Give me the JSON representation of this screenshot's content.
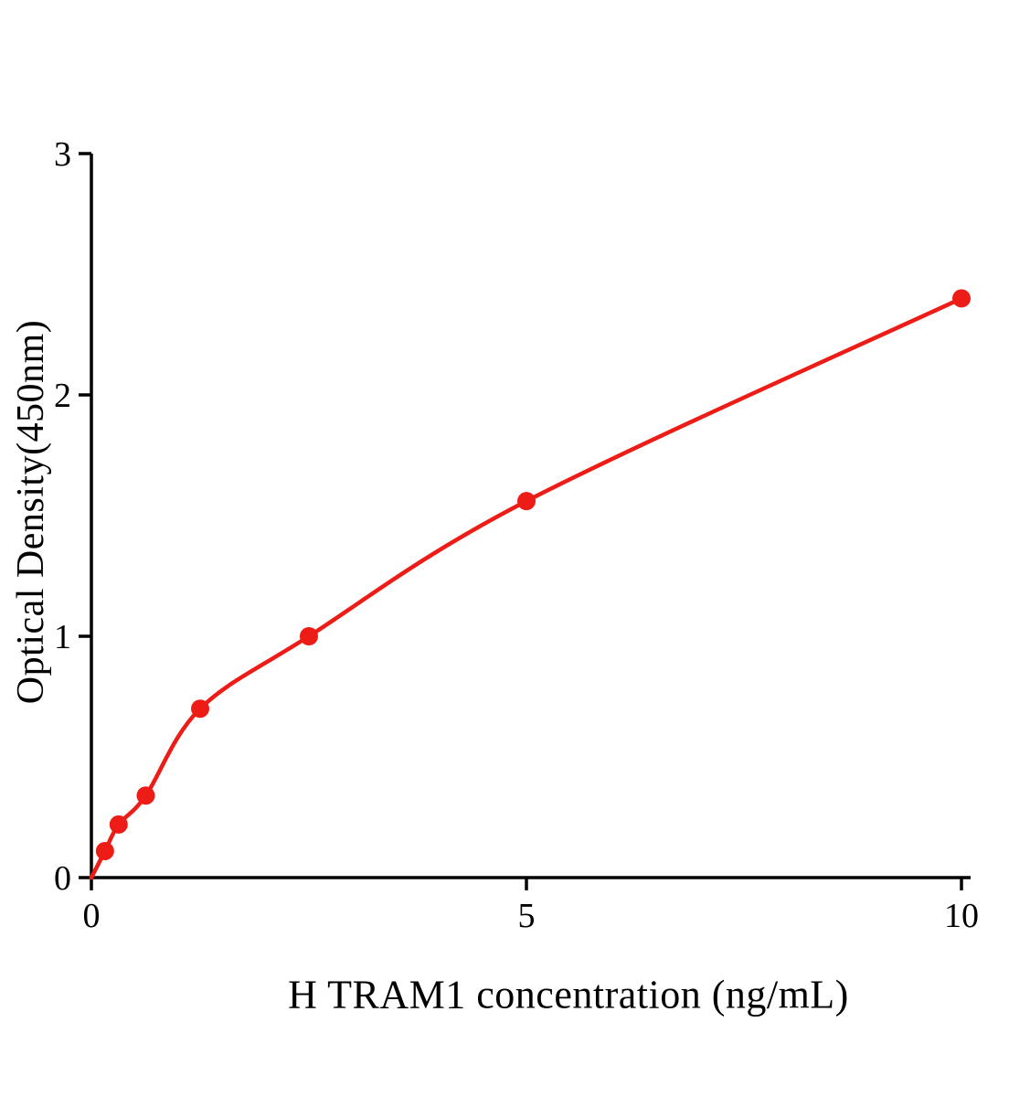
{
  "page": {
    "background": "#ffffff"
  },
  "chart_data": {
    "type": "scatter",
    "title": "",
    "xlabel": "H TRAM1 concentration (ng/mL)",
    "ylabel": "Optical Density(450nm)",
    "x": [
      0.156,
      0.313,
      0.625,
      1.25,
      2.5,
      5,
      10
    ],
    "y": [
      0.11,
      0.22,
      0.34,
      0.7,
      1.0,
      1.56,
      2.4
    ],
    "curve": {
      "style": "smooth-fit",
      "through_origin": true
    },
    "xlim": [
      0,
      10
    ],
    "ylim": [
      0,
      3
    ],
    "xticks": [
      0,
      5,
      10
    ],
    "yticks": [
      0,
      1,
      2,
      3
    ],
    "grid": false,
    "legend": null,
    "color": "#ed1c16",
    "axis_color": "#000000",
    "marker_size": 10
  }
}
